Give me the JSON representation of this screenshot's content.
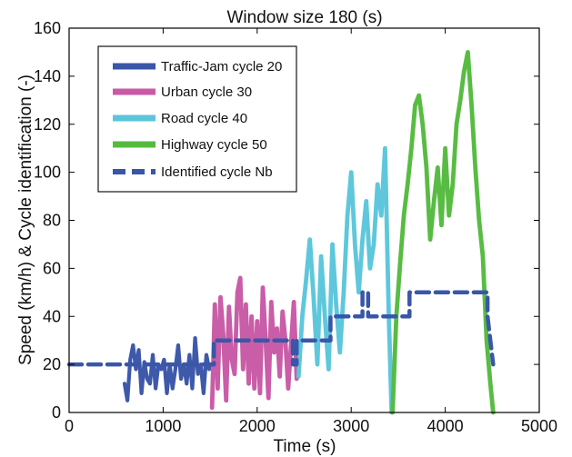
{
  "chart_data": {
    "type": "line",
    "title": "Window size 180 (s)",
    "xlabel": "Time (s)",
    "ylabel": "Speed (km/h) & Cycle identification (-)",
    "xlim": [
      0,
      5000
    ],
    "ylim": [
      0,
      160
    ],
    "x_ticks": [
      0,
      1000,
      2000,
      3000,
      4000,
      5000
    ],
    "y_ticks": [
      0,
      20,
      40,
      60,
      80,
      100,
      120,
      140,
      160
    ],
    "x_tick_labels": [
      "0",
      "1000",
      "2000",
      "3000",
      "4000",
      "5000"
    ],
    "y_tick_labels": [
      "0",
      "20",
      "40",
      "60",
      "80",
      "100",
      "120",
      "140",
      "160"
    ],
    "grid": false,
    "legend_position": "top-left",
    "series": [
      {
        "name": "Traffic-Jam cycle 20",
        "color": "#3a56a8",
        "style": "solid-noisy",
        "x": [
          590,
          620,
          650,
          680,
          710,
          740,
          770,
          800,
          830,
          860,
          890,
          920,
          950,
          980,
          1010,
          1040,
          1070,
          1100,
          1130,
          1160,
          1190,
          1220,
          1250,
          1280,
          1310,
          1340,
          1370,
          1400,
          1430,
          1460,
          1490,
          1510
        ],
        "y": [
          12,
          5,
          22,
          28,
          18,
          26,
          8,
          21,
          14,
          12,
          24,
          10,
          20,
          18,
          22,
          8,
          20,
          10,
          18,
          28,
          14,
          20,
          12,
          24,
          10,
          31,
          16,
          20,
          8,
          24,
          18,
          20
        ]
      },
      {
        "name": "Urban cycle 30",
        "color": "#c85aa6",
        "style": "solid-noisy",
        "x": [
          1520,
          1550,
          1580,
          1610,
          1640,
          1670,
          1700,
          1730,
          1760,
          1790,
          1820,
          1850,
          1880,
          1910,
          1940,
          1970,
          2000,
          2030,
          2060,
          2090,
          2120,
          2150,
          2180,
          2210,
          2240,
          2270,
          2300,
          2330,
          2360,
          2390,
          2420
        ],
        "y": [
          2,
          45,
          10,
          48,
          32,
          5,
          44,
          22,
          16,
          50,
          56,
          18,
          45,
          12,
          40,
          10,
          38,
          8,
          52,
          30,
          6,
          46,
          25,
          35,
          15,
          42,
          30,
          10,
          28,
          46,
          14
        ]
      },
      {
        "name": "Road cycle 40",
        "color": "#5bc6db",
        "style": "solid-noisy",
        "x": [
          2440,
          2480,
          2520,
          2560,
          2600,
          2640,
          2680,
          2720,
          2760,
          2800,
          2840,
          2880,
          2920,
          2960,
          3000,
          3040,
          3080,
          3120,
          3160,
          3200,
          3240,
          3280,
          3320,
          3360,
          3400,
          3430
        ],
        "y": [
          15,
          40,
          55,
          72,
          48,
          20,
          65,
          40,
          18,
          70,
          45,
          25,
          50,
          82,
          100,
          70,
          50,
          72,
          88,
          60,
          70,
          95,
          82,
          110,
          40,
          0
        ]
      },
      {
        "name": "Highway cycle 50",
        "color": "#55bb3f",
        "style": "solid-noisy",
        "x": [
          3440,
          3480,
          3520,
          3560,
          3600,
          3640,
          3680,
          3720,
          3760,
          3800,
          3840,
          3880,
          3920,
          3960,
          4000,
          4040,
          4080,
          4120,
          4160,
          4200,
          4240,
          4280,
          4320,
          4360,
          4400,
          4440,
          4480,
          4510
        ],
        "y": [
          0,
          40,
          62,
          82,
          95,
          110,
          128,
          132,
          120,
          102,
          72,
          88,
          102,
          78,
          110,
          82,
          95,
          120,
          130,
          142,
          150,
          128,
          102,
          80,
          65,
          30,
          12,
          0
        ]
      },
      {
        "name": "Identified cycle Nb",
        "color": "#3a56a8",
        "style": "dashed",
        "x": [
          0,
          1430,
          1430,
          1500,
          1500,
          1540,
          1540,
          2130,
          2130,
          2200,
          2200,
          2380,
          2380,
          2420,
          2420,
          2650,
          2650,
          2780,
          2780,
          2980,
          2980,
          3120,
          3120,
          3180,
          3180,
          3480,
          3480,
          3620,
          3620,
          4450,
          4450,
          4510
        ],
        "y": [
          20,
          20,
          20,
          20,
          20,
          20,
          30,
          30,
          30,
          30,
          30,
          30,
          20,
          20,
          30,
          30,
          30,
          30,
          40,
          40,
          40,
          40,
          50,
          50,
          40,
          40,
          40,
          40,
          50,
          50,
          40,
          20
        ]
      }
    ]
  }
}
